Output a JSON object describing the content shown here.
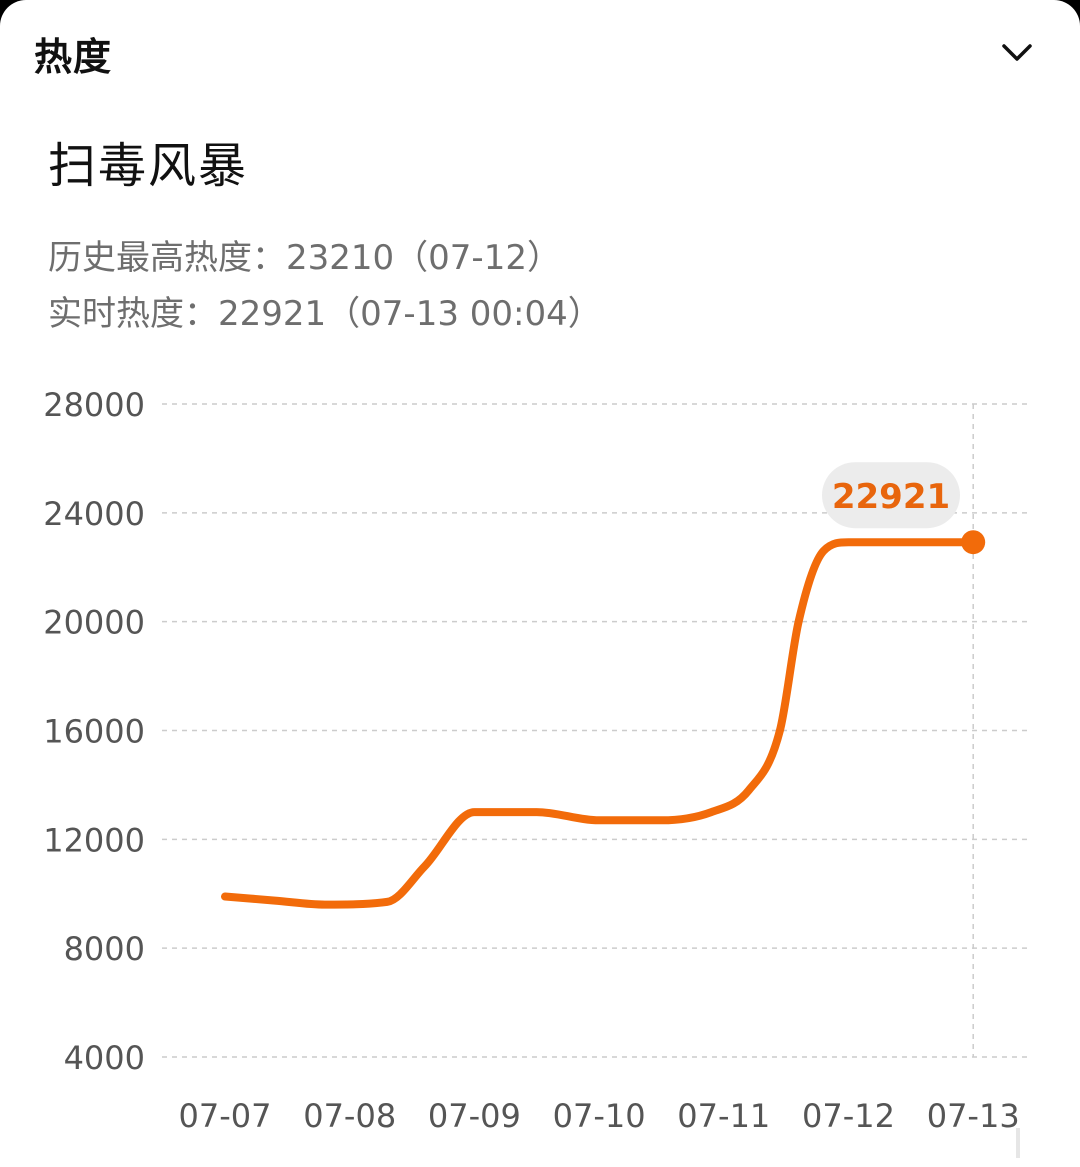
{
  "header": {
    "section_title": "热度"
  },
  "topic": {
    "title": "扫毒风暴"
  },
  "stats": {
    "peak_label": "历史最高热度：",
    "peak_value": "23210",
    "peak_date": "（07-12）",
    "current_label": "实时热度：",
    "current_value": "22921",
    "current_time": "（07-13 00:04）"
  },
  "colors": {
    "line": "#f26b0a",
    "bubble_bg": "#ececec",
    "bubble_text": "#e8650c",
    "grid": "#cccccc",
    "tick": "#555555"
  },
  "chart_data": {
    "type": "line",
    "categories": [
      "07-07",
      "07-08",
      "07-09",
      "07-10",
      "07-11",
      "07-12",
      "07-13"
    ],
    "x": [
      0,
      0.4,
      0.8,
      1.3,
      1.6,
      2.0,
      2.5,
      3.0,
      3.5,
      3.9,
      4.2,
      4.45,
      4.6,
      4.8,
      5.0,
      5.3,
      5.6,
      6.0
    ],
    "values": [
      9900,
      9750,
      9600,
      9700,
      11000,
      13000,
      13000,
      12700,
      12700,
      13000,
      13800,
      16000,
      20000,
      22600,
      22921,
      22921,
      22921,
      22921
    ],
    "ylim": [
      4000,
      28000
    ],
    "yticks": [
      "28000",
      "24000",
      "20000",
      "16000",
      "12000",
      "8000",
      "4000"
    ],
    "highlight": {
      "index": 17,
      "label": "22921"
    },
    "grid": true,
    "title": "",
    "xlabel": "",
    "ylabel": ""
  }
}
